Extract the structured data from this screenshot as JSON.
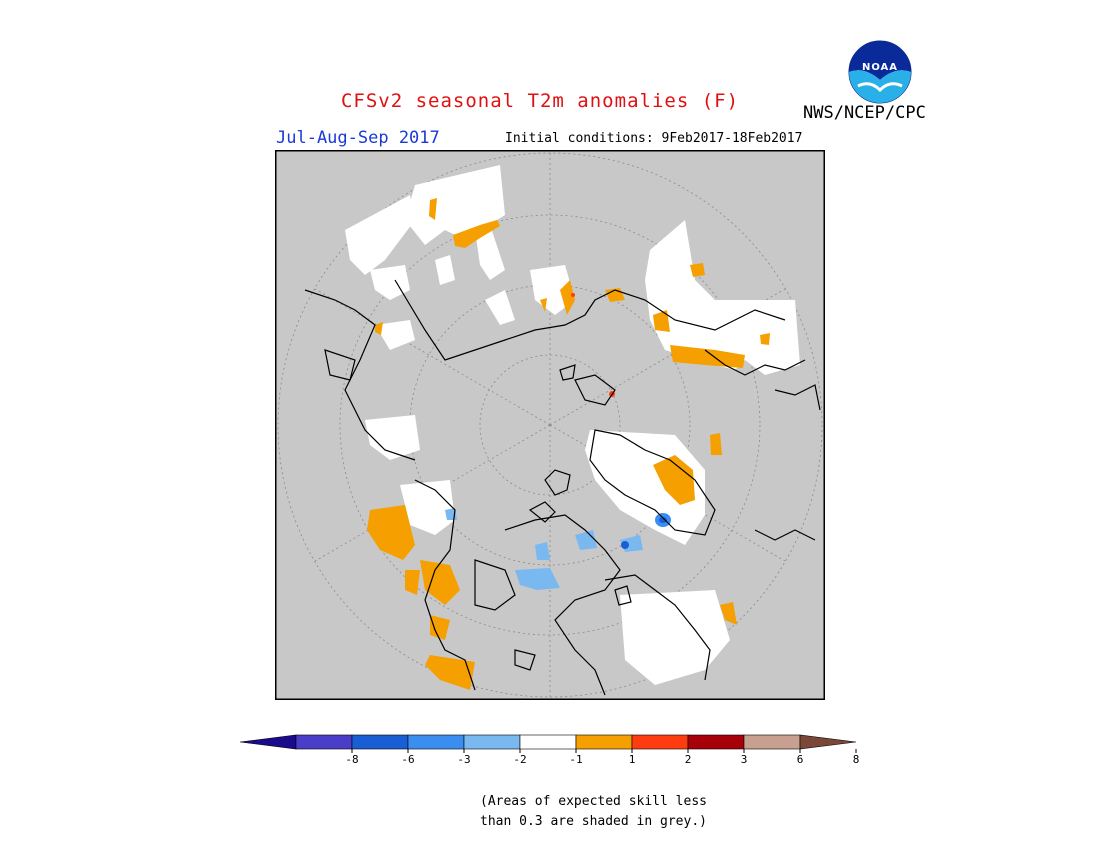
{
  "header": {
    "title": "CFSv2 seasonal T2m anomalies (F)",
    "season": "Jul-Aug-Sep 2017",
    "initial_conditions": "Initial conditions: 9Feb2017-18Feb2017",
    "agency": "NWS/NCEP/CPC",
    "logo_text": "NOAA"
  },
  "colorbar": {
    "tick_labels": [
      "-8",
      "-6",
      "-3",
      "-2",
      "-1",
      "1",
      "2",
      "3",
      "6",
      "8"
    ],
    "colors": [
      "#1a0a8c",
      "#4a3ec8",
      "#1a5ed6",
      "#3a8ef0",
      "#7ab8f0",
      "#ffffff",
      "#f5a000",
      "#ff3c10",
      "#a80008",
      "#c8a090",
      "#7a4838"
    ]
  },
  "note": {
    "line1": "(Areas of expected skill less",
    "line2": "than 0.3 are shaded in grey.)"
  },
  "map": {
    "projection": "north-polar-stereographic",
    "mask_color": "#c8c8c8",
    "coast_color": "#000000"
  }
}
